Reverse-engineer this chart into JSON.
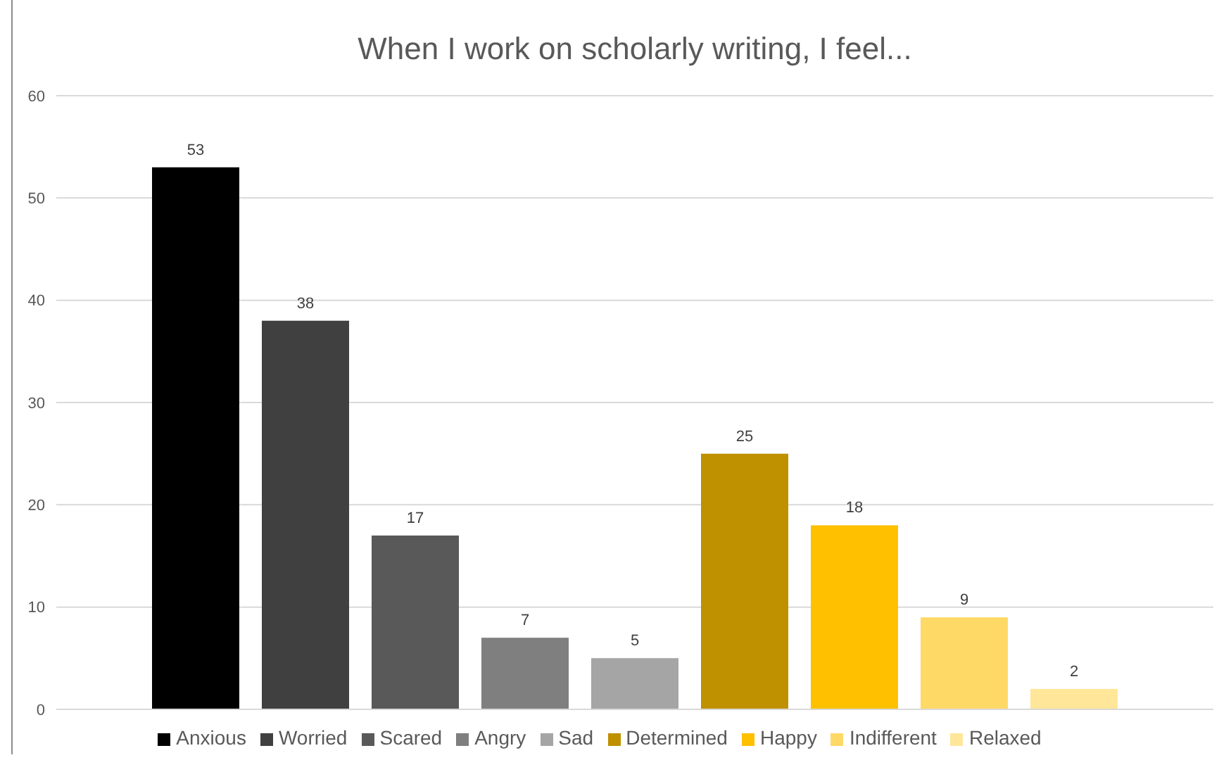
{
  "chart_data": {
    "type": "bar",
    "title": "When I work on scholarly writing, I feel...",
    "categories": [
      null
    ],
    "series": [
      {
        "name": "Anxious",
        "color": "#000000",
        "values": [
          53
        ]
      },
      {
        "name": "Worried",
        "color": "#404040",
        "values": [
          38
        ]
      },
      {
        "name": "Scared",
        "color": "#595959",
        "values": [
          17
        ]
      },
      {
        "name": "Angry",
        "color": "#7f7f7f",
        "values": [
          7
        ]
      },
      {
        "name": "Sad",
        "color": "#a5a5a5",
        "values": [
          5
        ]
      },
      {
        "name": "Determined",
        "color": "#bf9000",
        "values": [
          25
        ]
      },
      {
        "name": "Happy",
        "color": "#ffc000",
        "values": [
          18
        ]
      },
      {
        "name": "Indifferent",
        "color": "#ffd966",
        "values": [
          9
        ]
      },
      {
        "name": "Relaxed",
        "color": "#ffe699",
        "values": [
          2
        ]
      }
    ],
    "ylim": [
      0,
      60
    ],
    "yticks": [
      0,
      10,
      20,
      30,
      40,
      50,
      60
    ],
    "grid": "y",
    "legend": "bottom",
    "data_labels": true
  }
}
